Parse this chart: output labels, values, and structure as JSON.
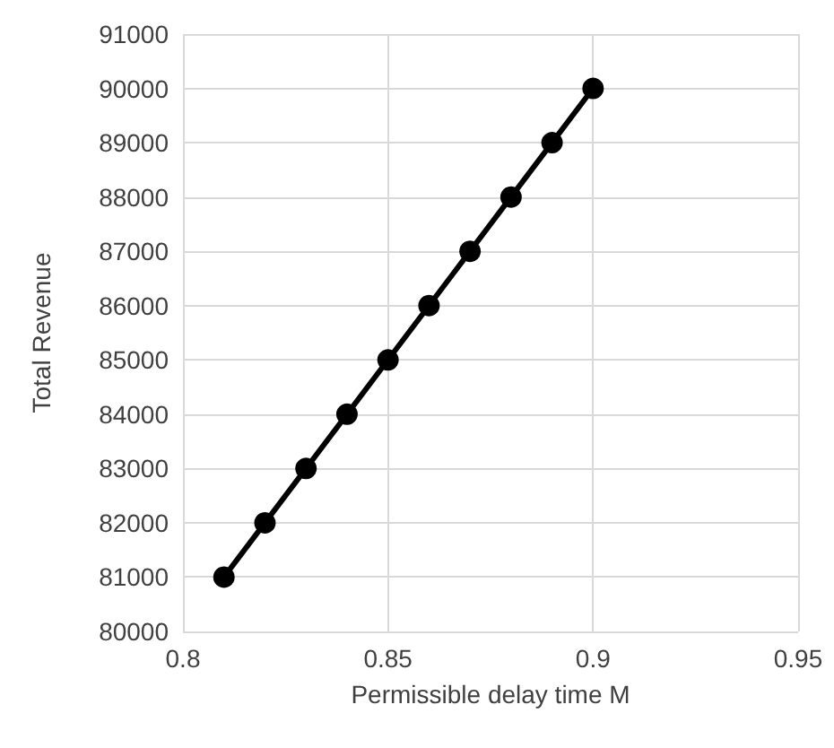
{
  "chart_data": {
    "type": "line",
    "xlabel": "Permissible delay time M",
    "ylabel": "Total Revenue",
    "x": [
      0.81,
      0.82,
      0.83,
      0.84,
      0.85,
      0.86,
      0.87,
      0.88,
      0.89,
      0.9
    ],
    "series": [
      {
        "color": "#000000",
        "values": [
          81000,
          82000,
          83000,
          84000,
          85000,
          86000,
          87000,
          88000,
          89000,
          90000
        ]
      }
    ],
    "xlim": [
      0.8,
      0.95
    ],
    "xticks": [
      0.8,
      0.85,
      0.9,
      0.95
    ],
    "ylim": [
      80000,
      91000
    ],
    "yticks": [
      80000,
      81000,
      82000,
      83000,
      84000,
      85000,
      86000,
      87000,
      88000,
      89000,
      90000,
      91000
    ],
    "grid": true,
    "marker": "circle",
    "line_style": "solid"
  }
}
